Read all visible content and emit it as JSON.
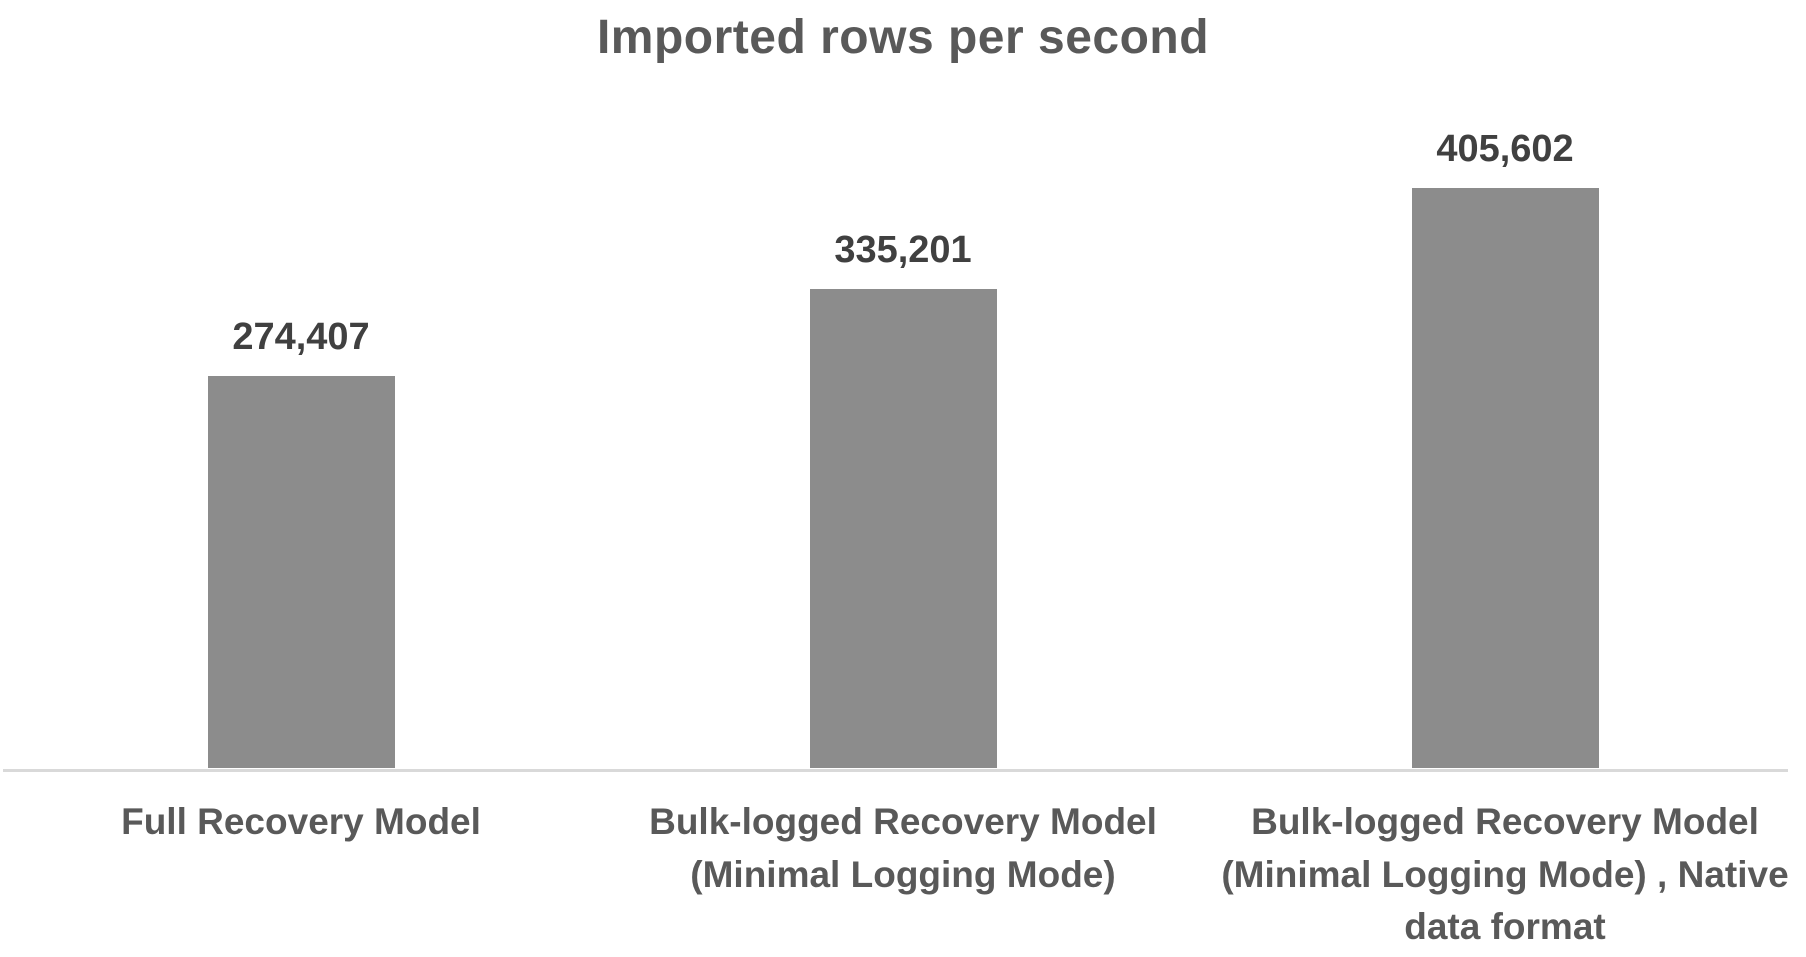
{
  "chart_data": {
    "type": "bar",
    "title": "Imported rows per second",
    "categories": [
      "Full Recovery Model",
      "Bulk-logged Recovery Model (Minimal Logging Mode)",
      "Bulk-logged Recovery Model (Minimal Logging Mode) , Native data format"
    ],
    "values": [
      274407,
      335201,
      405602
    ],
    "value_labels": [
      "274,407",
      "335,201",
      "405,602"
    ],
    "xlabel": "",
    "ylabel": "",
    "ylim": [
      0,
      478000
    ],
    "grid": false,
    "legend": false,
    "layout": {
      "orientation": "vertical",
      "data_labels_position": "above-bar",
      "x_axis_line_visible": true,
      "y_axis_visible": false
    },
    "colors": {
      "bar_fill": "#8C8C8C",
      "axis_line": "#D9D9D9",
      "title_text": "#595959",
      "data_label_text": "#404040",
      "category_label_text": "#595959",
      "background": "#FFFFFF"
    }
  }
}
